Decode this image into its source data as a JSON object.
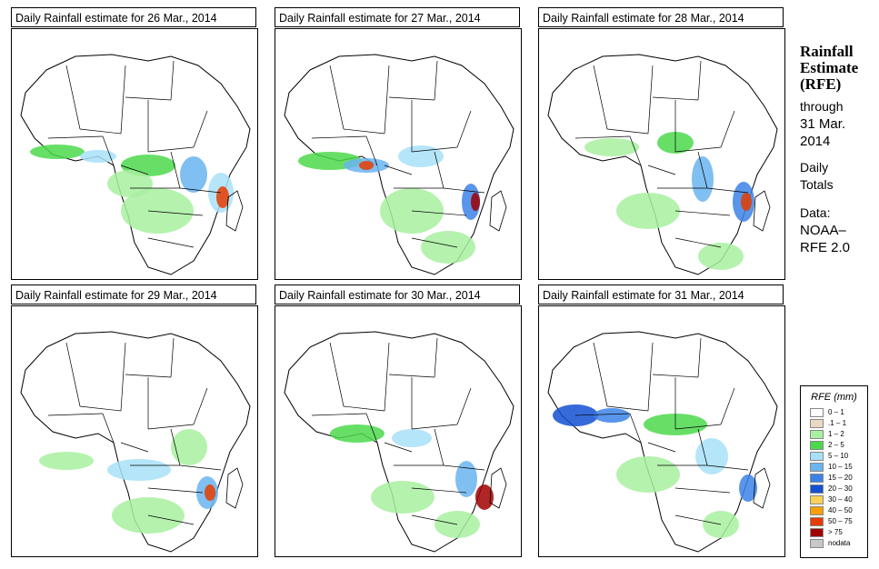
{
  "panels": [
    {
      "title": "Daily Rainfall estimate for  26 Mar., 2014"
    },
    {
      "title": "Daily Rainfall estimate for  27 Mar., 2014"
    },
    {
      "title": "Daily Rainfall estimate for  28 Mar., 2014"
    },
    {
      "title": "Daily Rainfall estimate for  29 Mar., 2014"
    },
    {
      "title": "Daily Rainfall estimate for  30 Mar., 2014"
    },
    {
      "title": "Daily Rainfall estimate for  31 Mar., 2014"
    }
  ],
  "sidebar": {
    "title_line1": "Rainfall",
    "title_line2": "Estimate",
    "title_line3": "(RFE)",
    "through": "through",
    "date_line1": "31 Mar.",
    "date_line2": "2014",
    "daily": "Daily",
    "totals": "Totals",
    "data_label": "Data:",
    "source_line1": "NOAA–",
    "source_line2": "RFE 2.0"
  },
  "legend": {
    "title": "RFE (mm)",
    "items": [
      {
        "label": "0 – 1",
        "color": "#ffffff"
      },
      {
        "label": ".1 – 1",
        "color": "#e8d9c4"
      },
      {
        "label": "1 – 2",
        "color": "#a8f0a0"
      },
      {
        "label": "2 – 5",
        "color": "#4cd94c"
      },
      {
        "label": "5 – 10",
        "color": "#a8e0f8"
      },
      {
        "label": "10 – 15",
        "color": "#6ab4f0"
      },
      {
        "label": "15 – 20",
        "color": "#3c82e6"
      },
      {
        "label": "20 – 30",
        "color": "#1450d2"
      },
      {
        "label": "30 – 40",
        "color": "#fad25a"
      },
      {
        "label": "40 – 50",
        "color": "#f5a000"
      },
      {
        "label": "50 – 75",
        "color": "#e63c00"
      },
      {
        "label": "> 75",
        "color": "#a00000"
      },
      {
        "label": "nodata",
        "color": "#c8c8c8"
      }
    ]
  }
}
